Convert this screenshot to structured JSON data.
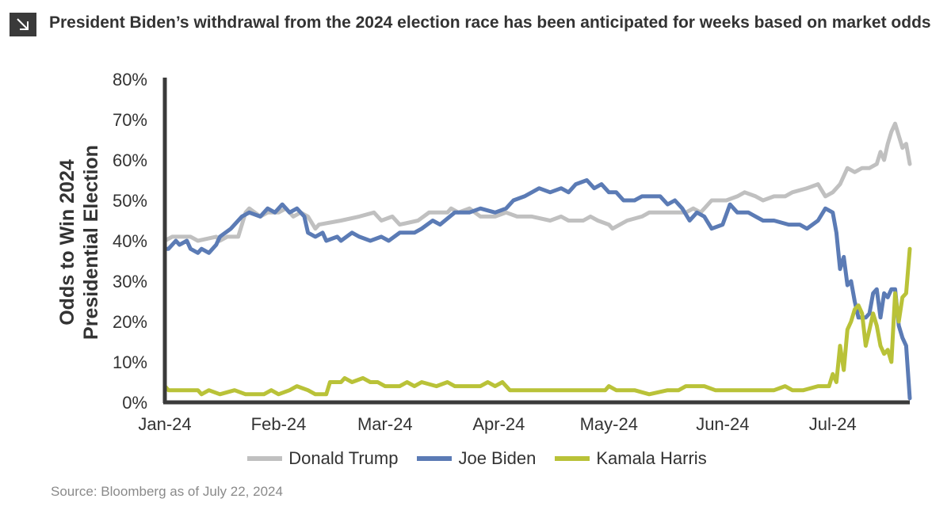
{
  "header": {
    "icon": "arrow-down-right-icon",
    "title": "President Biden’s withdrawal from the 2024 election race has been anticipated for weeks based on market odds"
  },
  "source": "Source: Bloomberg as of July 22, 2024",
  "chart_data": {
    "type": "line",
    "title": "President Biden’s withdrawal from the 2024 election race has been anticipated for weeks based on market odds",
    "ylabel": "Odds to Win 2024 Presidential Election",
    "ylabel_lines": [
      "Odds to Win 2024",
      "Presidential Election"
    ],
    "xlabel": "",
    "ylim": [
      0,
      80
    ],
    "yticks": [
      "0%",
      "10%",
      "20%",
      "30%",
      "40%",
      "50%",
      "60%",
      "70%",
      "80%"
    ],
    "xlim": [
      "2024-01-01",
      "2024-07-22"
    ],
    "xticks": [
      {
        "label": "Jan-24",
        "date": "2024-01-01"
      },
      {
        "label": "Feb-24",
        "date": "2024-02-01"
      },
      {
        "label": "Mar-24",
        "date": "2024-03-01"
      },
      {
        "label": "Apr-24",
        "date": "2024-04-01"
      },
      {
        "label": "May-24",
        "date": "2024-05-01"
      },
      {
        "label": "Jun-24",
        "date": "2024-06-01"
      },
      {
        "label": "Jul-24",
        "date": "2024-07-01"
      }
    ],
    "grid": false,
    "legend_position": "bottom",
    "series": [
      {
        "name": "Donald Trump",
        "color": "#c0c0c0",
        "points": [
          [
            "2024-01-01",
            40
          ],
          [
            "2024-01-03",
            41
          ],
          [
            "2024-01-08",
            41
          ],
          [
            "2024-01-10",
            40
          ],
          [
            "2024-01-15",
            41
          ],
          [
            "2024-01-16",
            40
          ],
          [
            "2024-01-18",
            41
          ],
          [
            "2024-01-21",
            41
          ],
          [
            "2024-01-23",
            47
          ],
          [
            "2024-01-24",
            48
          ],
          [
            "2024-01-27",
            46
          ],
          [
            "2024-01-29",
            47
          ],
          [
            "2024-02-01",
            47
          ],
          [
            "2024-02-03",
            48
          ],
          [
            "2024-02-05",
            46
          ],
          [
            "2024-02-07",
            47
          ],
          [
            "2024-02-09",
            46
          ],
          [
            "2024-02-11",
            43
          ],
          [
            "2024-02-12",
            44
          ],
          [
            "2024-02-18",
            45
          ],
          [
            "2024-02-23",
            46
          ],
          [
            "2024-02-27",
            47
          ],
          [
            "2024-02-29",
            45
          ],
          [
            "2024-03-03",
            46
          ],
          [
            "2024-03-05",
            44
          ],
          [
            "2024-03-10",
            45
          ],
          [
            "2024-03-13",
            47
          ],
          [
            "2024-03-18",
            47
          ],
          [
            "2024-03-19",
            48
          ],
          [
            "2024-03-21",
            47
          ],
          [
            "2024-03-24",
            48
          ],
          [
            "2024-03-27",
            46
          ],
          [
            "2024-03-31",
            46
          ],
          [
            "2024-04-03",
            47
          ],
          [
            "2024-04-06",
            46
          ],
          [
            "2024-04-10",
            46
          ],
          [
            "2024-04-15",
            45
          ],
          [
            "2024-04-18",
            46
          ],
          [
            "2024-04-20",
            45
          ],
          [
            "2024-04-24",
            45
          ],
          [
            "2024-04-26",
            46
          ],
          [
            "2024-04-28",
            45
          ],
          [
            "2024-05-01",
            44
          ],
          [
            "2024-05-02",
            43
          ],
          [
            "2024-05-04",
            44
          ],
          [
            "2024-05-06",
            45
          ],
          [
            "2024-05-10",
            46
          ],
          [
            "2024-05-12",
            47
          ],
          [
            "2024-05-18",
            47
          ],
          [
            "2024-05-22",
            47
          ],
          [
            "2024-05-24",
            48
          ],
          [
            "2024-05-26",
            47
          ],
          [
            "2024-05-29",
            50
          ],
          [
            "2024-06-02",
            50
          ],
          [
            "2024-06-05",
            51
          ],
          [
            "2024-06-07",
            52
          ],
          [
            "2024-06-10",
            51
          ],
          [
            "2024-06-12",
            50
          ],
          [
            "2024-06-15",
            51
          ],
          [
            "2024-06-18",
            51
          ],
          [
            "2024-06-20",
            52
          ],
          [
            "2024-06-24",
            53
          ],
          [
            "2024-06-27",
            54
          ],
          [
            "2024-06-29",
            51
          ],
          [
            "2024-07-01",
            52
          ],
          [
            "2024-07-03",
            54
          ],
          [
            "2024-07-05",
            58
          ],
          [
            "2024-07-07",
            57
          ],
          [
            "2024-07-09",
            58
          ],
          [
            "2024-07-11",
            58
          ],
          [
            "2024-07-13",
            59
          ],
          [
            "2024-07-14",
            62
          ],
          [
            "2024-07-15",
            60
          ],
          [
            "2024-07-16",
            64
          ],
          [
            "2024-07-17",
            67
          ],
          [
            "2024-07-18",
            69
          ],
          [
            "2024-07-19",
            66
          ],
          [
            "2024-07-20",
            63
          ],
          [
            "2024-07-21",
            64
          ],
          [
            "2024-07-22",
            59
          ]
        ]
      },
      {
        "name": "Joe Biden",
        "color": "#5b7bb5",
        "points": [
          [
            "2024-01-01",
            38
          ],
          [
            "2024-01-02",
            38
          ],
          [
            "2024-01-04",
            40
          ],
          [
            "2024-01-05",
            39
          ],
          [
            "2024-01-07",
            40
          ],
          [
            "2024-01-08",
            38
          ],
          [
            "2024-01-10",
            37
          ],
          [
            "2024-01-11",
            38
          ],
          [
            "2024-01-13",
            37
          ],
          [
            "2024-01-15",
            39
          ],
          [
            "2024-01-16",
            41
          ],
          [
            "2024-01-19",
            43
          ],
          [
            "2024-01-22",
            46
          ],
          [
            "2024-01-24",
            47
          ],
          [
            "2024-01-27",
            46
          ],
          [
            "2024-01-29",
            48
          ],
          [
            "2024-01-31",
            47
          ],
          [
            "2024-02-02",
            49
          ],
          [
            "2024-02-04",
            47
          ],
          [
            "2024-02-06",
            48
          ],
          [
            "2024-02-08",
            46
          ],
          [
            "2024-02-09",
            42
          ],
          [
            "2024-02-11",
            41
          ],
          [
            "2024-02-13",
            42
          ],
          [
            "2024-02-14",
            40
          ],
          [
            "2024-02-17",
            41
          ],
          [
            "2024-02-18",
            40
          ],
          [
            "2024-02-21",
            42
          ],
          [
            "2024-02-23",
            41
          ],
          [
            "2024-02-26",
            40
          ],
          [
            "2024-02-29",
            41
          ],
          [
            "2024-03-02",
            40
          ],
          [
            "2024-03-05",
            42
          ],
          [
            "2024-03-09",
            42
          ],
          [
            "2024-03-11",
            43
          ],
          [
            "2024-03-14",
            45
          ],
          [
            "2024-03-16",
            44
          ],
          [
            "2024-03-20",
            47
          ],
          [
            "2024-03-24",
            47
          ],
          [
            "2024-03-27",
            48
          ],
          [
            "2024-03-31",
            47
          ],
          [
            "2024-04-03",
            48
          ],
          [
            "2024-04-05",
            50
          ],
          [
            "2024-04-08",
            51
          ],
          [
            "2024-04-10",
            52
          ],
          [
            "2024-04-12",
            53
          ],
          [
            "2024-04-15",
            52
          ],
          [
            "2024-04-18",
            53
          ],
          [
            "2024-04-20",
            52
          ],
          [
            "2024-04-22",
            54
          ],
          [
            "2024-04-25",
            55
          ],
          [
            "2024-04-27",
            53
          ],
          [
            "2024-04-29",
            54
          ],
          [
            "2024-05-01",
            52
          ],
          [
            "2024-05-03",
            52
          ],
          [
            "2024-05-05",
            50
          ],
          [
            "2024-05-08",
            50
          ],
          [
            "2024-05-10",
            51
          ],
          [
            "2024-05-13",
            51
          ],
          [
            "2024-05-15",
            51
          ],
          [
            "2024-05-17",
            49
          ],
          [
            "2024-05-19",
            50
          ],
          [
            "2024-05-21",
            48
          ],
          [
            "2024-05-23",
            45
          ],
          [
            "2024-05-25",
            47
          ],
          [
            "2024-05-27",
            46
          ],
          [
            "2024-05-29",
            43
          ],
          [
            "2024-06-01",
            44
          ],
          [
            "2024-06-03",
            49
          ],
          [
            "2024-06-05",
            47
          ],
          [
            "2024-06-08",
            47
          ],
          [
            "2024-06-10",
            46
          ],
          [
            "2024-06-12",
            45
          ],
          [
            "2024-06-15",
            45
          ],
          [
            "2024-06-19",
            44
          ],
          [
            "2024-06-22",
            44
          ],
          [
            "2024-06-24",
            43
          ],
          [
            "2024-06-27",
            45
          ],
          [
            "2024-06-29",
            48
          ],
          [
            "2024-07-01",
            47
          ],
          [
            "2024-07-02",
            42
          ],
          [
            "2024-07-03",
            33
          ],
          [
            "2024-07-04",
            36
          ],
          [
            "2024-07-05",
            29
          ],
          [
            "2024-07-06",
            30
          ],
          [
            "2024-07-07",
            25
          ],
          [
            "2024-07-08",
            21
          ],
          [
            "2024-07-10",
            21
          ],
          [
            "2024-07-11",
            22
          ],
          [
            "2024-07-12",
            27
          ],
          [
            "2024-07-13",
            28
          ],
          [
            "2024-07-14",
            21
          ],
          [
            "2024-07-15",
            27
          ],
          [
            "2024-07-16",
            26
          ],
          [
            "2024-07-17",
            28
          ],
          [
            "2024-07-18",
            28
          ],
          [
            "2024-07-19",
            19
          ],
          [
            "2024-07-20",
            16
          ],
          [
            "2024-07-21",
            14
          ],
          [
            "2024-07-22",
            1
          ]
        ]
      },
      {
        "name": "Kamala Harris",
        "color": "#b9c238",
        "points": [
          [
            "2024-01-01",
            4
          ],
          [
            "2024-01-02",
            3
          ],
          [
            "2024-01-06",
            3
          ],
          [
            "2024-01-10",
            3
          ],
          [
            "2024-01-11",
            2
          ],
          [
            "2024-01-13",
            3
          ],
          [
            "2024-01-16",
            2
          ],
          [
            "2024-01-20",
            3
          ],
          [
            "2024-01-23",
            2
          ],
          [
            "2024-01-28",
            2
          ],
          [
            "2024-01-30",
            3
          ],
          [
            "2024-02-01",
            2
          ],
          [
            "2024-02-04",
            3
          ],
          [
            "2024-02-06",
            4
          ],
          [
            "2024-02-09",
            3
          ],
          [
            "2024-02-11",
            2
          ],
          [
            "2024-02-14",
            2
          ],
          [
            "2024-02-15",
            5
          ],
          [
            "2024-02-18",
            5
          ],
          [
            "2024-02-19",
            6
          ],
          [
            "2024-02-21",
            5
          ],
          [
            "2024-02-24",
            6
          ],
          [
            "2024-02-26",
            5
          ],
          [
            "2024-02-28",
            5
          ],
          [
            "2024-03-01",
            4
          ],
          [
            "2024-03-05",
            4
          ],
          [
            "2024-03-07",
            5
          ],
          [
            "2024-03-09",
            4
          ],
          [
            "2024-03-11",
            5
          ],
          [
            "2024-03-15",
            4
          ],
          [
            "2024-03-18",
            5
          ],
          [
            "2024-03-20",
            4
          ],
          [
            "2024-03-27",
            4
          ],
          [
            "2024-03-29",
            5
          ],
          [
            "2024-03-31",
            4
          ],
          [
            "2024-04-02",
            5
          ],
          [
            "2024-04-04",
            3
          ],
          [
            "2024-04-10",
            3
          ],
          [
            "2024-04-12",
            3
          ],
          [
            "2024-04-20",
            3
          ],
          [
            "2024-04-30",
            3
          ],
          [
            "2024-05-01",
            4
          ],
          [
            "2024-05-03",
            3
          ],
          [
            "2024-05-08",
            3
          ],
          [
            "2024-05-12",
            2
          ],
          [
            "2024-05-17",
            3
          ],
          [
            "2024-05-20",
            3
          ],
          [
            "2024-05-22",
            4
          ],
          [
            "2024-05-27",
            4
          ],
          [
            "2024-05-30",
            3
          ],
          [
            "2024-06-01",
            3
          ],
          [
            "2024-06-08",
            3
          ],
          [
            "2024-06-15",
            3
          ],
          [
            "2024-06-18",
            4
          ],
          [
            "2024-06-20",
            3
          ],
          [
            "2024-06-23",
            3
          ],
          [
            "2024-06-27",
            4
          ],
          [
            "2024-06-30",
            4
          ],
          [
            "2024-07-01",
            7
          ],
          [
            "2024-07-02",
            5
          ],
          [
            "2024-07-03",
            14
          ],
          [
            "2024-07-04",
            8
          ],
          [
            "2024-07-05",
            18
          ],
          [
            "2024-07-06",
            20
          ],
          [
            "2024-07-07",
            23
          ],
          [
            "2024-07-08",
            24
          ],
          [
            "2024-07-09",
            22
          ],
          [
            "2024-07-10",
            14
          ],
          [
            "2024-07-11",
            18
          ],
          [
            "2024-07-12",
            22
          ],
          [
            "2024-07-13",
            19
          ],
          [
            "2024-07-14",
            14
          ],
          [
            "2024-07-15",
            12
          ],
          [
            "2024-07-16",
            13
          ],
          [
            "2024-07-17",
            10
          ],
          [
            "2024-07-18",
            27
          ],
          [
            "2024-07-19",
            20
          ],
          [
            "2024-07-20",
            26
          ],
          [
            "2024-07-21",
            27
          ],
          [
            "2024-07-22",
            38
          ]
        ]
      }
    ]
  }
}
